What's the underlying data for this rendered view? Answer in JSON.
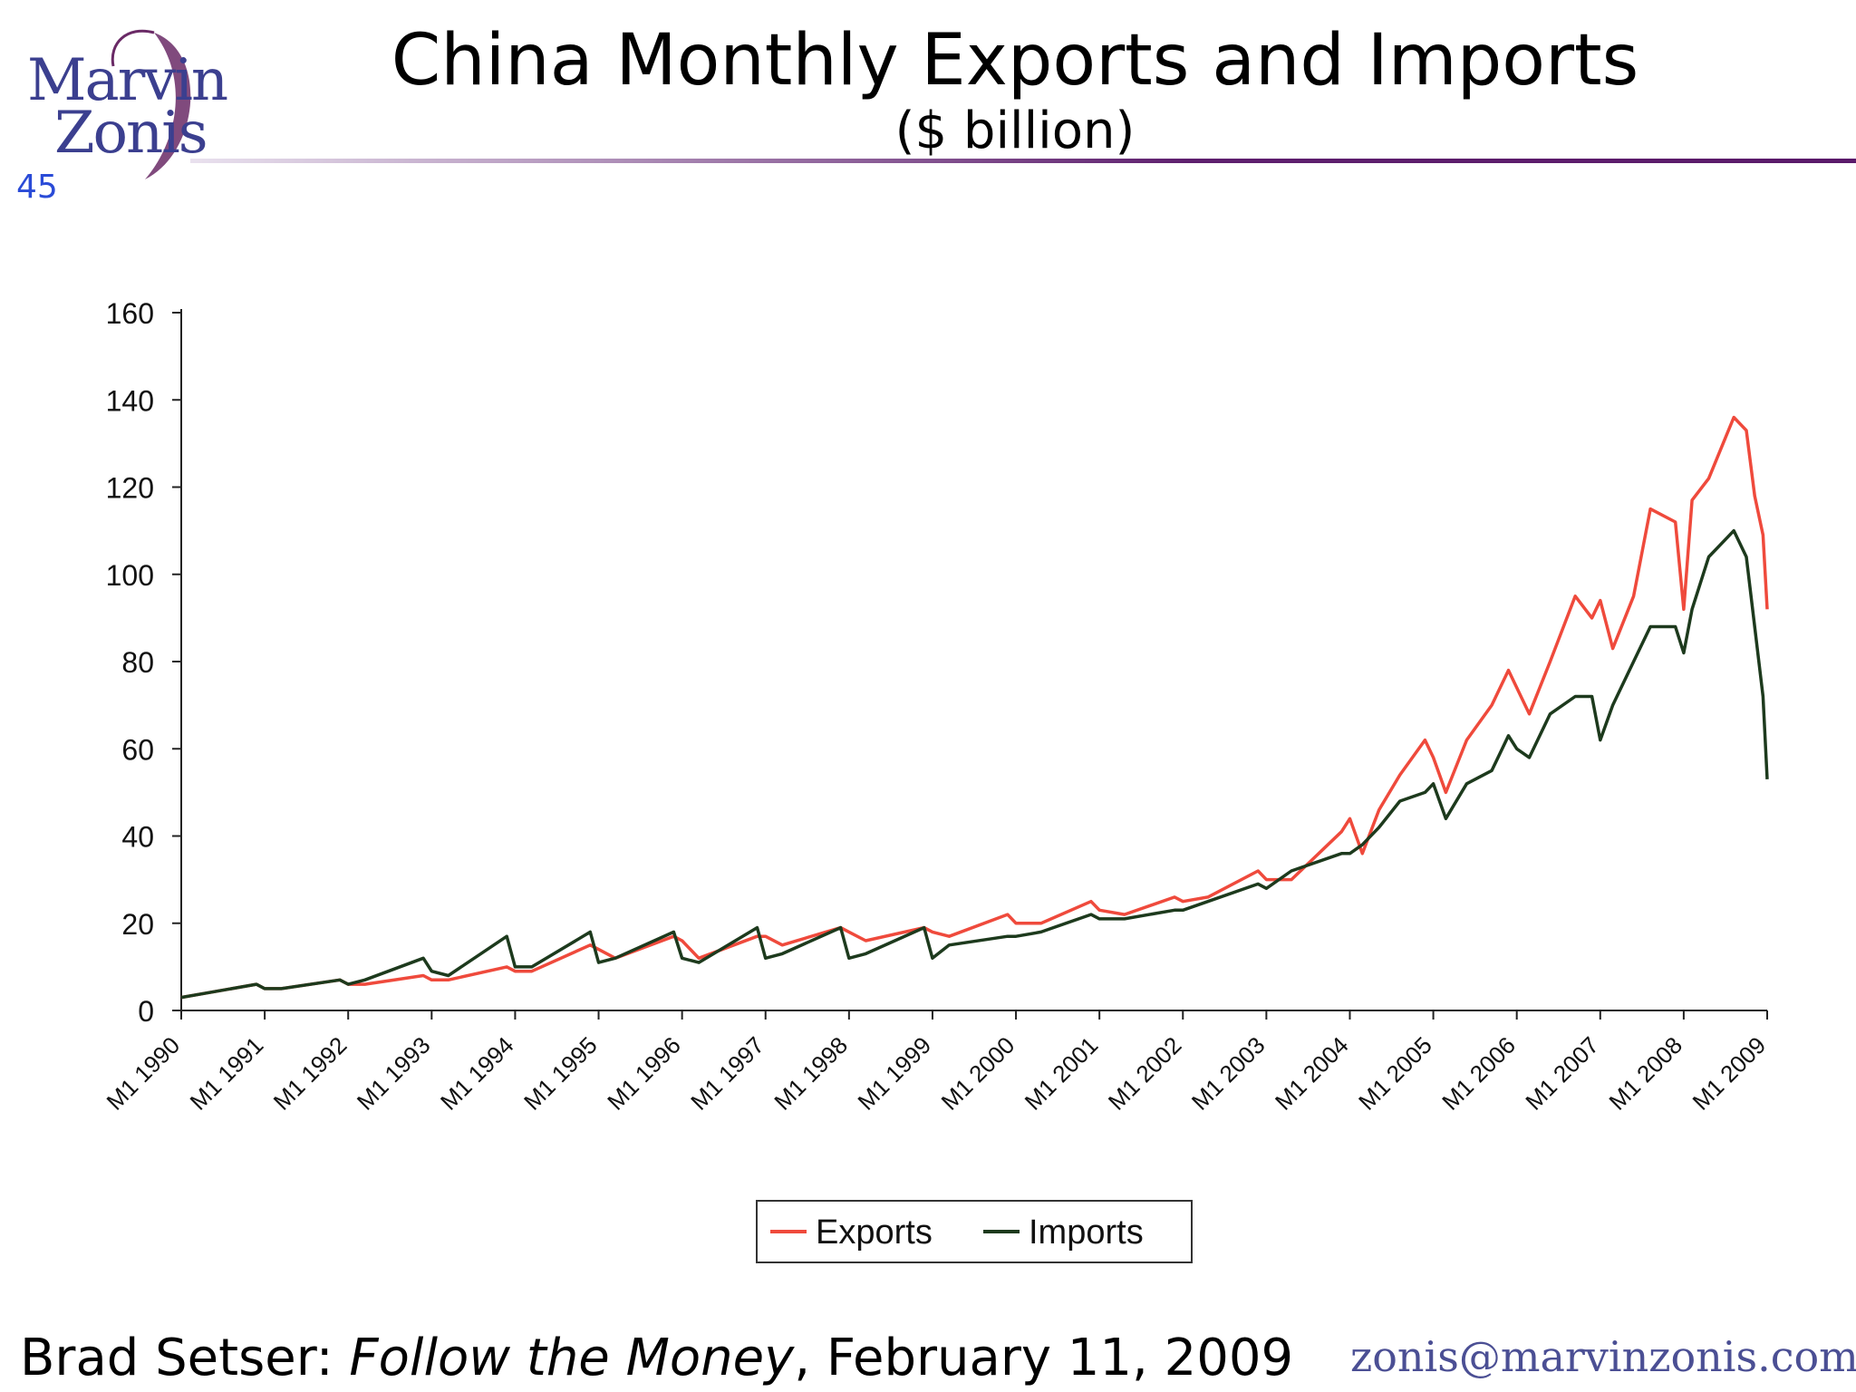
{
  "slide": {
    "logo_line1": "Marvin",
    "logo_line2": "Zonis",
    "number": "45",
    "title": "China Monthly Exports and Imports",
    "subtitle": "($ billion)",
    "footer_author": "Brad Setser: ",
    "footer_blog": "Follow the Money",
    "footer_date": ", February 11, 2009",
    "email": "zonis@marvinzonis.com"
  },
  "colors": {
    "exports": "#ef4a3c",
    "imports": "#1d3a1d",
    "accent": "#5a1a6a"
  },
  "chart_data": {
    "type": "line",
    "title": "China Monthly Exports and Imports",
    "ylabel": "$ billion",
    "ylim": [
      0,
      160
    ],
    "yticks": [
      0,
      20,
      40,
      60,
      80,
      100,
      120,
      140,
      160
    ],
    "ytick_labels": [
      "0",
      "20",
      "40",
      "60",
      "80",
      "100",
      "120",
      "140",
      "160"
    ],
    "x_start_year": 1990,
    "x_end_year": 2009,
    "categories": [
      "M1 1990",
      "M1 1991",
      "M1 1992",
      "M1 1993",
      "M1 1994",
      "M1 1995",
      "M1 1996",
      "M1 1997",
      "M1 1998",
      "M1 1999",
      "M1 2000",
      "M1 2001",
      "M1 2002",
      "M1 2003",
      "M1 2004",
      "M1 2005",
      "M1 2006",
      "M1 2007",
      "M1 2008",
      "M1 2009"
    ],
    "legend": {
      "position": "bottom",
      "entries": [
        "Exports",
        "Imports"
      ]
    },
    "series": [
      {
        "name": "Exports",
        "x": [
          1990.0,
          1990.3,
          1990.9,
          1991.0,
          1991.2,
          1991.9,
          1992.0,
          1992.2,
          1992.9,
          1993.0,
          1993.2,
          1993.9,
          1994.0,
          1994.2,
          1994.9,
          1995.0,
          1995.2,
          1995.9,
          1996.0,
          1996.2,
          1996.9,
          1997.0,
          1997.2,
          1997.9,
          1998.0,
          1998.2,
          1998.9,
          1999.0,
          1999.2,
          1999.9,
          2000.0,
          2000.3,
          2000.9,
          2001.0,
          2001.3,
          2001.9,
          2002.0,
          2002.3,
          2002.9,
          2003.0,
          2003.3,
          2003.9,
          2004.0,
          2004.15,
          2004.35,
          2004.6,
          2004.9,
          2005.0,
          2005.15,
          2005.4,
          2005.7,
          2005.9,
          2006.0,
          2006.15,
          2006.4,
          2006.7,
          2006.9,
          2007.0,
          2007.15,
          2007.4,
          2007.6,
          2007.9,
          2008.0,
          2008.1,
          2008.3,
          2008.6,
          2008.75,
          2008.85,
          2008.95,
          2009.0
        ],
        "values": [
          3,
          4,
          6,
          5,
          5,
          7,
          6,
          6,
          8,
          7,
          7,
          10,
          9,
          9,
          15,
          14,
          12,
          17,
          16,
          12,
          17,
          17,
          15,
          19,
          18,
          16,
          19,
          18,
          17,
          22,
          20,
          20,
          25,
          23,
          22,
          26,
          25,
          26,
          32,
          30,
          30,
          41,
          44,
          36,
          46,
          54,
          62,
          58,
          50,
          62,
          70,
          78,
          74,
          68,
          80,
          95,
          90,
          94,
          83,
          95,
          115,
          112,
          92,
          117,
          122,
          136,
          133,
          118,
          109,
          92
        ]
      },
      {
        "name": "Imports",
        "x": [
          1990.0,
          1990.3,
          1990.9,
          1991.0,
          1991.2,
          1991.9,
          1992.0,
          1992.2,
          1992.9,
          1993.0,
          1993.2,
          1993.9,
          1994.0,
          1994.2,
          1994.9,
          1995.0,
          1995.2,
          1995.9,
          1996.0,
          1996.2,
          1996.9,
          1997.0,
          1997.2,
          1997.9,
          1998.0,
          1998.2,
          1998.9,
          1999.0,
          1999.2,
          1999.9,
          2000.0,
          2000.3,
          2000.9,
          2001.0,
          2001.3,
          2001.9,
          2002.0,
          2002.3,
          2002.9,
          2003.0,
          2003.3,
          2003.9,
          2004.0,
          2004.15,
          2004.35,
          2004.6,
          2004.9,
          2005.0,
          2005.15,
          2005.4,
          2005.7,
          2005.9,
          2006.0,
          2006.15,
          2006.4,
          2006.7,
          2006.9,
          2007.0,
          2007.15,
          2007.4,
          2007.6,
          2007.9,
          2008.0,
          2008.1,
          2008.3,
          2008.6,
          2008.75,
          2008.85,
          2008.95,
          2009.0
        ],
        "values": [
          3,
          4,
          6,
          5,
          5,
          7,
          6,
          7,
          12,
          9,
          8,
          17,
          10,
          10,
          18,
          11,
          12,
          18,
          12,
          11,
          19,
          12,
          13,
          19,
          12,
          13,
          19,
          12,
          15,
          17,
          17,
          18,
          22,
          21,
          21,
          23,
          23,
          25,
          29,
          28,
          32,
          36,
          36,
          38,
          42,
          48,
          50,
          52,
          44,
          52,
          55,
          63,
          60,
          58,
          68,
          72,
          72,
          62,
          70,
          80,
          88,
          88,
          82,
          92,
          104,
          110,
          104,
          88,
          72,
          53
        ]
      }
    ]
  }
}
